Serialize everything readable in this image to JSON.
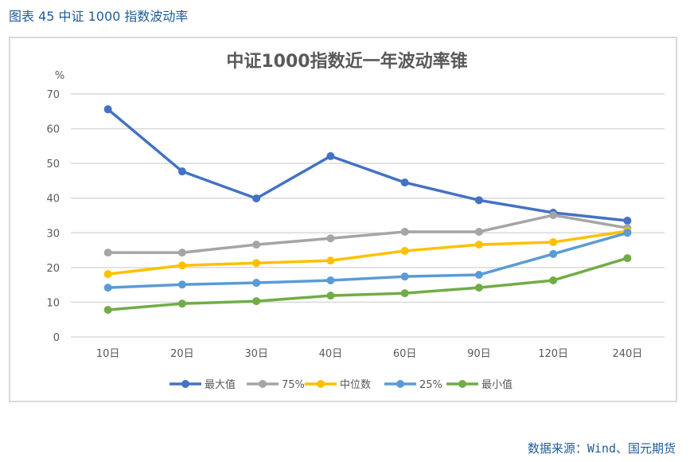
{
  "figure_title": "图表 45  中证 1000 指数波动率",
  "source": "数据来源：Wind、国元期货",
  "chart_data": {
    "type": "line",
    "title": "中证1000指数近一年波动率锥",
    "ylabel": "%",
    "xlabel": "",
    "ylim": [
      0,
      70
    ],
    "yticks": [
      0,
      10,
      20,
      30,
      40,
      50,
      60,
      70
    ],
    "grid": true,
    "legend": "bottom",
    "categories": [
      "10日",
      "20日",
      "30日",
      "40日",
      "60日",
      "90日",
      "120日",
      "240日"
    ],
    "series": [
      {
        "name": "最大值",
        "color": "#4472c4",
        "values": [
          65.6,
          47.7,
          39.9,
          52.1,
          44.5,
          39.4,
          35.8,
          33.5
        ]
      },
      {
        "name": "75%",
        "color": "#a5a5a5",
        "values": [
          24.3,
          24.3,
          26.6,
          28.4,
          30.3,
          30.3,
          35.1,
          31.4
        ]
      },
      {
        "name": "中位数",
        "color": "#ffc000",
        "values": [
          18.1,
          20.6,
          21.3,
          22.0,
          24.8,
          26.6,
          27.3,
          30.5
        ]
      },
      {
        "name": "25%",
        "color": "#5b9bd5",
        "values": [
          14.2,
          15.1,
          15.6,
          16.3,
          17.4,
          17.9,
          23.9,
          30.0
        ]
      },
      {
        "name": "最小值",
        "color": "#70ad47",
        "values": [
          7.8,
          9.6,
          10.3,
          11.9,
          12.6,
          14.2,
          16.3,
          22.7
        ]
      }
    ]
  }
}
